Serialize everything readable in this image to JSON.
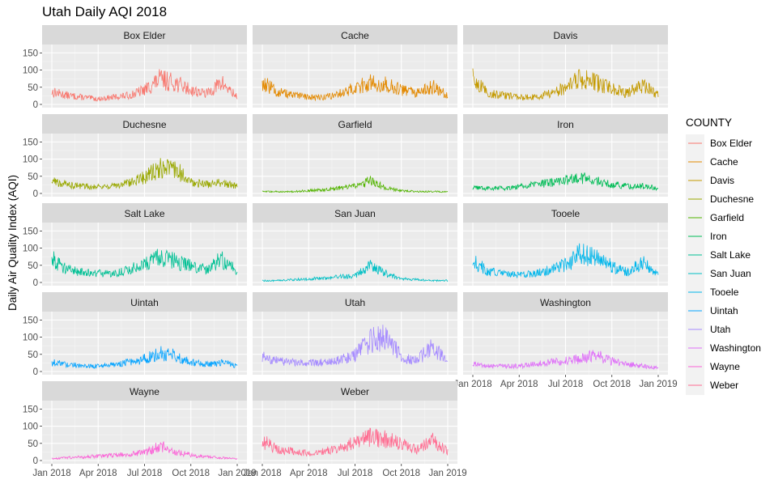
{
  "chart_data": {
    "type": "line",
    "title": "Utah Daily AQI 2018",
    "ylabel": "Daily Air Quality Index (AQI)",
    "xlabel": "",
    "legend_title": "COUNTY",
    "legend_position": "right",
    "grid": true,
    "x_ticks": [
      "Jan 2018",
      "Apr 2018",
      "Jul 2018",
      "Oct 2018",
      "Jan 2019"
    ],
    "y_ticks": [
      0,
      50,
      100,
      150
    ],
    "ylim": [
      0,
      165
    ],
    "x_tick_months": [
      0,
      3,
      6,
      9,
      12
    ],
    "x_points": [
      "Jan 2018",
      "Feb 2018",
      "Mar 2018",
      "Apr 2018",
      "May 2018",
      "Jun 2018",
      "Jul 2018",
      "Aug 2018",
      "Sep 2018",
      "Oct 2018",
      "Nov 2018",
      "Dec 2018",
      "Jan 2019"
    ],
    "series": [
      {
        "name": "Box Elder",
        "color": "#F8766D",
        "x_start_month": 0,
        "x_end_month": 12,
        "values": [
          35,
          25,
          20,
          15,
          20,
          25,
          40,
          70,
          60,
          40,
          30,
          60,
          20
        ]
      },
      {
        "name": "Cache",
        "color": "#E38900",
        "x_start_month": 0,
        "x_end_month": 12,
        "values": [
          60,
          35,
          25,
          20,
          20,
          30,
          45,
          60,
          55,
          40,
          30,
          50,
          25
        ]
      },
      {
        "name": "Davis",
        "color": "#C49A00",
        "x_start_month": 0,
        "x_end_month": 12,
        "values": [
          70,
          30,
          25,
          20,
          20,
          30,
          45,
          75,
          60,
          45,
          30,
          55,
          25
        ]
      },
      {
        "name": "Duchesne",
        "color": "#99A800",
        "x_start_month": 0,
        "x_end_month": 12,
        "values": [
          35,
          25,
          20,
          20,
          20,
          30,
          45,
          70,
          70,
          30,
          25,
          30,
          20
        ]
      },
      {
        "name": "Garfield",
        "color": "#53B400",
        "x_start_month": 0,
        "x_end_month": 12,
        "values": [
          5,
          5,
          5,
          8,
          10,
          15,
          20,
          35,
          15,
          8,
          5,
          5,
          5
        ]
      },
      {
        "name": "Iron",
        "color": "#00BC56",
        "x_start_month": 0,
        "x_end_month": 12,
        "values": [
          15,
          15,
          15,
          20,
          25,
          30,
          35,
          45,
          35,
          25,
          20,
          20,
          15
        ]
      },
      {
        "name": "Salt Lake",
        "color": "#00C094",
        "x_start_month": 0,
        "x_end_month": 12,
        "values": [
          70,
          35,
          30,
          25,
          25,
          35,
          50,
          70,
          60,
          45,
          35,
          65,
          30
        ]
      },
      {
        "name": "San Juan",
        "color": "#00BFC4",
        "x_start_month": 0,
        "x_end_month": 12,
        "values": [
          5,
          5,
          8,
          10,
          12,
          15,
          20,
          45,
          25,
          10,
          8,
          5,
          5
        ]
      },
      {
        "name": "Tooele",
        "color": "#00B6EB",
        "x_start_month": 0,
        "x_end_month": 12,
        "values": [
          60,
          30,
          25,
          20,
          25,
          35,
          50,
          80,
          65,
          45,
          30,
          55,
          20
        ]
      },
      {
        "name": "Uintah",
        "color": "#06A4FF",
        "x_start_month": 0,
        "x_end_month": 12,
        "values": [
          25,
          20,
          15,
          15,
          20,
          25,
          35,
          50,
          45,
          25,
          20,
          25,
          15
        ]
      },
      {
        "name": "Utah",
        "color": "#A58AFF",
        "x_start_month": 0,
        "x_end_month": 12,
        "values": [
          45,
          30,
          25,
          25,
          25,
          35,
          45,
          85,
          95,
          40,
          30,
          70,
          25
        ]
      },
      {
        "name": "Washington",
        "color": "#DF70F8",
        "x_start_month": 0,
        "x_end_month": 12,
        "values": [
          20,
          15,
          15,
          15,
          20,
          25,
          30,
          35,
          45,
          30,
          20,
          15,
          10
        ]
      },
      {
        "name": "Wayne",
        "color": "#FB61D7",
        "x_start_month": 0,
        "x_end_month": 12,
        "values": [
          5,
          8,
          10,
          12,
          15,
          18,
          22,
          40,
          25,
          15,
          10,
          8,
          5
        ]
      },
      {
        "name": "Weber",
        "color": "#FF6C91",
        "x_start_month": 0,
        "x_end_month": 12,
        "values": [
          55,
          30,
          25,
          20,
          25,
          35,
          55,
          65,
          60,
          45,
          30,
          55,
          25
        ]
      }
    ]
  }
}
